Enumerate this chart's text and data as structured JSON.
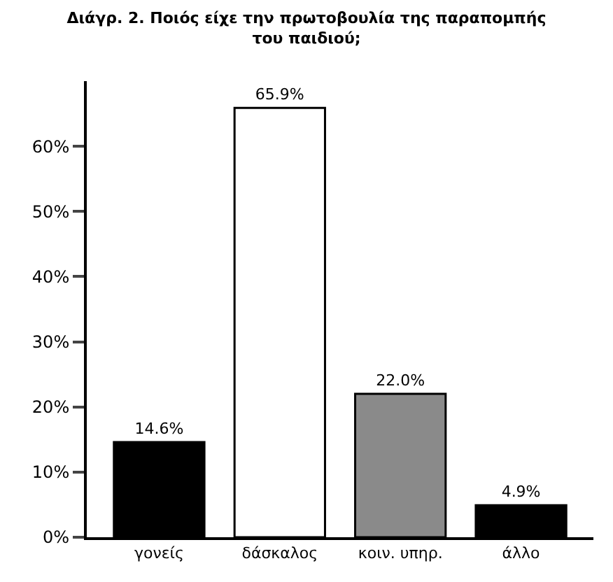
{
  "chart_data": {
    "type": "bar",
    "title": "Διάγρ. 2. Ποιός είχε την πρωτοβουλία της παραπομπής του παιδιού;",
    "categories": [
      "γονείς",
      "δάσκαλος",
      "κοιν. υπηρ.",
      "άλλο"
    ],
    "values": [
      14.6,
      65.9,
      22.0,
      4.9
    ],
    "value_labels": [
      "14.6%",
      "65.9%",
      "22.0%",
      "4.9%"
    ],
    "colors": [
      "#000000",
      "#ffffff",
      "#8a8a8a",
      "#000000"
    ],
    "ylim": [
      0,
      70
    ],
    "yticks": [
      {
        "value": 0,
        "label": "0%"
      },
      {
        "value": 10,
        "label": "10%"
      },
      {
        "value": 20,
        "label": "20%"
      },
      {
        "value": 30,
        "label": "30%"
      },
      {
        "value": 40,
        "label": "40%"
      },
      {
        "value": 50,
        "label": "50%"
      },
      {
        "value": 60,
        "label": "60%"
      }
    ],
    "legend": false
  }
}
